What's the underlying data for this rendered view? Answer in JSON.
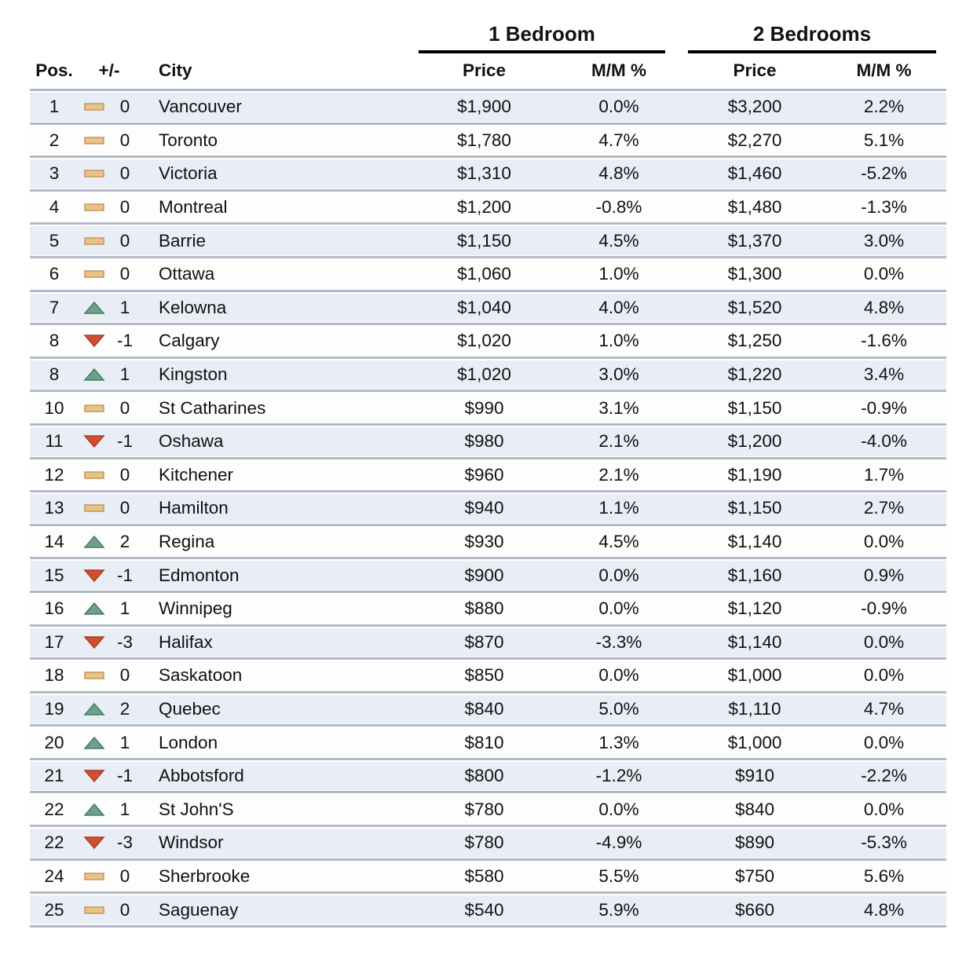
{
  "chart_data": {
    "type": "table",
    "groups": [
      {
        "label": "1 Bedroom"
      },
      {
        "label": "2 Bedrooms"
      }
    ],
    "headers": {
      "pos": "Pos.",
      "change": "+/-",
      "city": "City",
      "price": "Price",
      "mm": "M/M %"
    },
    "rows": [
      {
        "pos": "1",
        "dir": "same",
        "delta": "0",
        "city": "Vancouver",
        "bed1_price": "$1,900",
        "bed1_mm": "0.0%",
        "bed2_price": "$3,200",
        "bed2_mm": "2.2%"
      },
      {
        "pos": "2",
        "dir": "same",
        "delta": "0",
        "city": "Toronto",
        "bed1_price": "$1,780",
        "bed1_mm": "4.7%",
        "bed2_price": "$2,270",
        "bed2_mm": "5.1%"
      },
      {
        "pos": "3",
        "dir": "same",
        "delta": "0",
        "city": "Victoria",
        "bed1_price": "$1,310",
        "bed1_mm": "4.8%",
        "bed2_price": "$1,460",
        "bed2_mm": "-5.2%"
      },
      {
        "pos": "4",
        "dir": "same",
        "delta": "0",
        "city": "Montreal",
        "bed1_price": "$1,200",
        "bed1_mm": "-0.8%",
        "bed2_price": "$1,480",
        "bed2_mm": "-1.3%"
      },
      {
        "pos": "5",
        "dir": "same",
        "delta": "0",
        "city": "Barrie",
        "bed1_price": "$1,150",
        "bed1_mm": "4.5%",
        "bed2_price": "$1,370",
        "bed2_mm": "3.0%"
      },
      {
        "pos": "6",
        "dir": "same",
        "delta": "0",
        "city": "Ottawa",
        "bed1_price": "$1,060",
        "bed1_mm": "1.0%",
        "bed2_price": "$1,300",
        "bed2_mm": "0.0%"
      },
      {
        "pos": "7",
        "dir": "up",
        "delta": "1",
        "city": "Kelowna",
        "bed1_price": "$1,040",
        "bed1_mm": "4.0%",
        "bed2_price": "$1,520",
        "bed2_mm": "4.8%"
      },
      {
        "pos": "8",
        "dir": "down",
        "delta": "-1",
        "city": "Calgary",
        "bed1_price": "$1,020",
        "bed1_mm": "1.0%",
        "bed2_price": "$1,250",
        "bed2_mm": "-1.6%"
      },
      {
        "pos": "8",
        "dir": "up",
        "delta": "1",
        "city": "Kingston",
        "bed1_price": "$1,020",
        "bed1_mm": "3.0%",
        "bed2_price": "$1,220",
        "bed2_mm": "3.4%"
      },
      {
        "pos": "10",
        "dir": "same",
        "delta": "0",
        "city": "St Catharines",
        "bed1_price": "$990",
        "bed1_mm": "3.1%",
        "bed2_price": "$1,150",
        "bed2_mm": "-0.9%"
      },
      {
        "pos": "11",
        "dir": "down",
        "delta": "-1",
        "city": "Oshawa",
        "bed1_price": "$980",
        "bed1_mm": "2.1%",
        "bed2_price": "$1,200",
        "bed2_mm": "-4.0%"
      },
      {
        "pos": "12",
        "dir": "same",
        "delta": "0",
        "city": "Kitchener",
        "bed1_price": "$960",
        "bed1_mm": "2.1%",
        "bed2_price": "$1,190",
        "bed2_mm": "1.7%"
      },
      {
        "pos": "13",
        "dir": "same",
        "delta": "0",
        "city": "Hamilton",
        "bed1_price": "$940",
        "bed1_mm": "1.1%",
        "bed2_price": "$1,150",
        "bed2_mm": "2.7%"
      },
      {
        "pos": "14",
        "dir": "up",
        "delta": "2",
        "city": "Regina",
        "bed1_price": "$930",
        "bed1_mm": "4.5%",
        "bed2_price": "$1,140",
        "bed2_mm": "0.0%"
      },
      {
        "pos": "15",
        "dir": "down",
        "delta": "-1",
        "city": "Edmonton",
        "bed1_price": "$900",
        "bed1_mm": "0.0%",
        "bed2_price": "$1,160",
        "bed2_mm": "0.9%"
      },
      {
        "pos": "16",
        "dir": "up",
        "delta": "1",
        "city": "Winnipeg",
        "bed1_price": "$880",
        "bed1_mm": "0.0%",
        "bed2_price": "$1,120",
        "bed2_mm": "-0.9%"
      },
      {
        "pos": "17",
        "dir": "down",
        "delta": "-3",
        "city": "Halifax",
        "bed1_price": "$870",
        "bed1_mm": "-3.3%",
        "bed2_price": "$1,140",
        "bed2_mm": "0.0%"
      },
      {
        "pos": "18",
        "dir": "same",
        "delta": "0",
        "city": "Saskatoon",
        "bed1_price": "$850",
        "bed1_mm": "0.0%",
        "bed2_price": "$1,000",
        "bed2_mm": "0.0%"
      },
      {
        "pos": "19",
        "dir": "up",
        "delta": "2",
        "city": "Quebec",
        "bed1_price": "$840",
        "bed1_mm": "5.0%",
        "bed2_price": "$1,110",
        "bed2_mm": "4.7%"
      },
      {
        "pos": "20",
        "dir": "up",
        "delta": "1",
        "city": "London",
        "bed1_price": "$810",
        "bed1_mm": "1.3%",
        "bed2_price": "$1,000",
        "bed2_mm": "0.0%"
      },
      {
        "pos": "21",
        "dir": "down",
        "delta": "-1",
        "city": "Abbotsford",
        "bed1_price": "$800",
        "bed1_mm": "-1.2%",
        "bed2_price": "$910",
        "bed2_mm": "-2.2%"
      },
      {
        "pos": "22",
        "dir": "up",
        "delta": "1",
        "city": "St John'S",
        "bed1_price": "$780",
        "bed1_mm": "0.0%",
        "bed2_price": "$840",
        "bed2_mm": "0.0%"
      },
      {
        "pos": "22",
        "dir": "down",
        "delta": "-3",
        "city": "Windsor",
        "bed1_price": "$780",
        "bed1_mm": "-4.9%",
        "bed2_price": "$890",
        "bed2_mm": "-5.3%"
      },
      {
        "pos": "24",
        "dir": "same",
        "delta": "0",
        "city": "Sherbrooke",
        "bed1_price": "$580",
        "bed1_mm": "5.5%",
        "bed2_price": "$750",
        "bed2_mm": "5.6%"
      },
      {
        "pos": "25",
        "dir": "same",
        "delta": "0",
        "city": "Saguenay",
        "bed1_price": "$540",
        "bed1_mm": "5.9%",
        "bed2_price": "$660",
        "bed2_mm": "4.8%"
      }
    ]
  },
  "colors": {
    "stripe": "#e9edf6",
    "plain": "#fdfdfe",
    "rule": "#b2bac7",
    "underline": "#000000",
    "up": {
      "fill": "#6da188",
      "stroke": "#4a7a62"
    },
    "down": {
      "fill": "#cf4f31",
      "stroke": "#a93d22"
    },
    "same": {
      "fill": "#eac287",
      "stroke": "#bf9a5c"
    }
  }
}
